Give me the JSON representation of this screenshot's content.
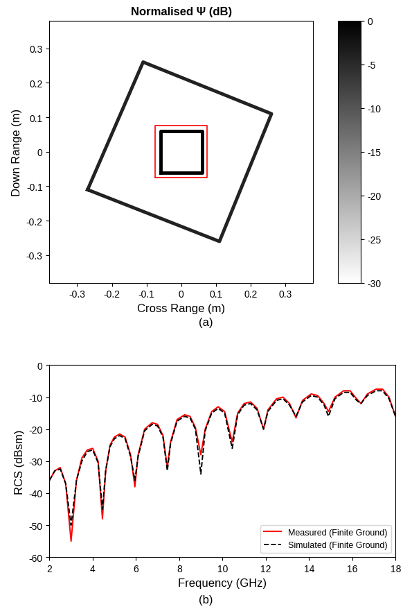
{
  "chart_data": [
    {
      "type": "outline_map",
      "title": "Normalised Ψ (dB)",
      "x_label": "Cross Range (m)",
      "y_label": "Down Range (m)",
      "xlim": [
        -0.38,
        0.38
      ],
      "ylim": [
        -0.38,
        0.38
      ],
      "xticks": [
        -0.3,
        -0.2,
        -0.1,
        0,
        0.1,
        0.2,
        0.3
      ],
      "yticks": [
        -0.3,
        -0.2,
        -0.1,
        0,
        0.1,
        0.2,
        0.3
      ],
      "shapes": [
        {
          "x": [
            -0.27,
            -0.11,
            0.26,
            0.11,
            -0.27
          ],
          "y": [
            -0.11,
            0.26,
            0.11,
            -0.26,
            -0.11
          ],
          "level": -4
        },
        {
          "x": [
            -0.06,
            -0.06,
            0.06,
            0.06,
            -0.06
          ],
          "y": [
            -0.06,
            0.06,
            0.06,
            -0.06,
            -0.06
          ],
          "level": 0
        }
      ],
      "outline": {
        "x": [
          -0.075,
          -0.075,
          0.075,
          0.075,
          -0.075
        ],
        "y": [
          -0.075,
          0.075,
          0.075,
          -0.075,
          -0.075
        ],
        "color": "#ff0000"
      },
      "colorbar": {
        "range": [
          -30,
          0
        ],
        "ticks": [
          0,
          -5,
          -10,
          -15,
          -20,
          -25,
          -30
        ]
      },
      "caption": "(a)"
    },
    {
      "type": "line",
      "x_label": "Frequency (GHz)",
      "y_label": "RCS (dBsm)",
      "xlim": [
        2,
        18
      ],
      "ylim": [
        -60,
        0
      ],
      "xticks": [
        2,
        4,
        6,
        8,
        10,
        12,
        14,
        16,
        18
      ],
      "yticks": [
        -60,
        -50,
        -40,
        -30,
        -20,
        -10,
        0
      ],
      "legend": "lower right",
      "caption": "(b)",
      "x": [
        2.0,
        2.25,
        2.5,
        2.75,
        3.0,
        3.25,
        3.5,
        3.75,
        4.0,
        4.25,
        4.45,
        4.6,
        4.8,
        5.0,
        5.25,
        5.5,
        5.75,
        5.95,
        6.1,
        6.4,
        6.75,
        7.0,
        7.25,
        7.45,
        7.6,
        7.9,
        8.25,
        8.5,
        8.75,
        9.0,
        9.2,
        9.5,
        9.8,
        10.1,
        10.45,
        10.7,
        11.0,
        11.3,
        11.6,
        11.9,
        12.1,
        12.5,
        12.8,
        13.1,
        13.4,
        13.7,
        14.1,
        14.4,
        14.7,
        14.9,
        15.2,
        15.6,
        15.9,
        16.2,
        16.4,
        16.7,
        17.1,
        17.4,
        17.7,
        18.0
      ],
      "series": [
        {
          "name": "Measured (Finite Ground)",
          "color": "#ff0000",
          "line_style": "solid",
          "values": [
            -36,
            -33,
            -32,
            -37,
            -55,
            -36,
            -29,
            -26.5,
            -26,
            -30,
            -48,
            -33,
            -25,
            -22.5,
            -21.5,
            -22.5,
            -28,
            -38,
            -28,
            -20,
            -18,
            -18.5,
            -22,
            -32,
            -24,
            -17,
            -15.5,
            -16,
            -19.5,
            -28,
            -20,
            -14.5,
            -13,
            -14.5,
            -24,
            -15,
            -12,
            -11.5,
            -13.5,
            -20,
            -14,
            -10.5,
            -10,
            -12,
            -16.5,
            -11,
            -9,
            -9.5,
            -12,
            -14.5,
            -10,
            -8,
            -8,
            -10.5,
            -12,
            -9,
            -7.5,
            -7.5,
            -10,
            -16
          ]
        },
        {
          "name": "Simulated (Finite Ground)",
          "color": "#000000",
          "line_style": "dashed",
          "values": [
            -36,
            -33,
            -32.5,
            -37,
            -50,
            -36,
            -30,
            -27,
            -26.5,
            -30.5,
            -45,
            -33,
            -25.5,
            -23,
            -22,
            -23,
            -28.5,
            -36,
            -28.5,
            -20.5,
            -18.5,
            -19,
            -22.5,
            -33,
            -24.5,
            -17.5,
            -16,
            -16.5,
            -20,
            -34,
            -20.5,
            -15,
            -13.5,
            -15,
            -26,
            -15.5,
            -12.5,
            -12,
            -14,
            -20,
            -14.5,
            -11,
            -10.5,
            -12.5,
            -16,
            -11.5,
            -9.5,
            -10,
            -12.5,
            -16,
            -10.5,
            -8.5,
            -8.5,
            -11,
            -12,
            -9.5,
            -8,
            -8,
            -10.5,
            -16
          ]
        }
      ]
    }
  ]
}
